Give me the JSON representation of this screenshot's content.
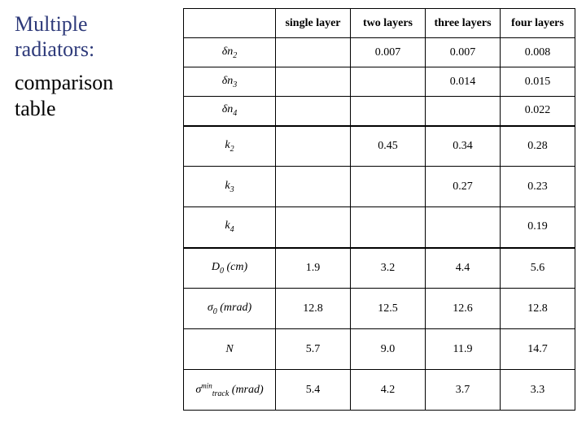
{
  "title": {
    "line1": "Multiple",
    "line2": "radiators:",
    "sub1": "comparison",
    "sub2": "table",
    "main_color": "#2e3a7a",
    "sub_color": "#000000",
    "fontsize": 26
  },
  "table": {
    "columns": [
      "single layer",
      "two layers",
      "three layers",
      "four layers"
    ],
    "rows": [
      {
        "label_html": "δn<sub>2</sub>",
        "cells": [
          "",
          "0.007",
          "0.007",
          "0.008"
        ],
        "section": 1
      },
      {
        "label_html": "δn<sub>3</sub>",
        "cells": [
          "",
          "",
          "0.014",
          "0.015"
        ],
        "section": 1
      },
      {
        "label_html": "δn<sub>4</sub>",
        "cells": [
          "",
          "",
          "",
          "0.022"
        ],
        "section": 1
      },
      {
        "label_html": "k<sub>2</sub>",
        "cells": [
          "",
          "0.45",
          "0.34",
          "0.28"
        ],
        "section": 2
      },
      {
        "label_html": "k<sub>3</sub>",
        "cells": [
          "",
          "",
          "0.27",
          "0.23"
        ],
        "section": 2
      },
      {
        "label_html": "k<sub>4</sub>",
        "cells": [
          "",
          "",
          "",
          "0.19"
        ],
        "section": 2
      },
      {
        "label_html": "D<sub>0</sub> (cm)",
        "cells": [
          "1.9",
          "3.2",
          "4.4",
          "5.6"
        ],
        "section": 3
      },
      {
        "label_html": "σ<sub>0</sub> (mrad)",
        "cells": [
          "12.8",
          "12.5",
          "12.6",
          "12.8"
        ],
        "section": 3
      },
      {
        "label_html": "N",
        "cells": [
          "5.7",
          "9.0",
          "11.9",
          "14.7"
        ],
        "section": 3
      },
      {
        "label_html": "σ<sup>min</sup><sub>track</sub> (mrad)",
        "cells": [
          "5.4",
          "4.2",
          "3.7",
          "3.3"
        ],
        "section": 3
      }
    ],
    "layout": {
      "label_col_width": 113,
      "data_col_width": 92,
      "header_row_height": 36,
      "section1_row_height": 36,
      "section_row_height": 50,
      "border_color": "#000000",
      "thick_border_width": 2,
      "thin_border_width": 1,
      "font_family": "Times New Roman",
      "cell_fontsize": 14,
      "background_color": "#ffffff"
    }
  }
}
